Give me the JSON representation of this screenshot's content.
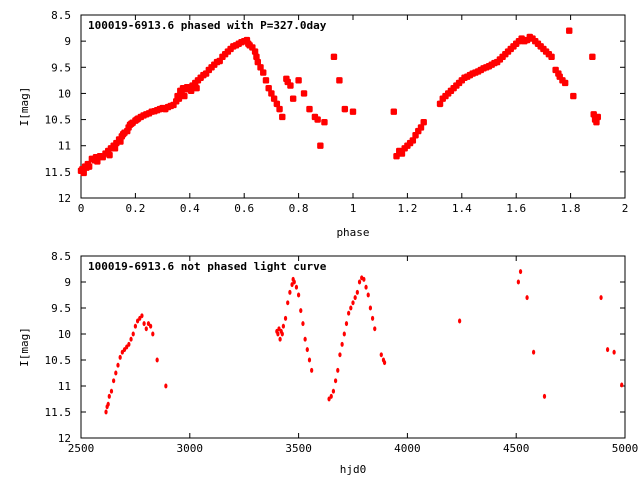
{
  "chart_data": [
    {
      "type": "scatter",
      "title": "100019-6913.6 phased with P=327.0day",
      "xlabel": "phase",
      "ylabel": "I[mag]",
      "xlim": [
        0,
        2
      ],
      "ylim": [
        12,
        8.5
      ],
      "y_inverted": true,
      "xticks": [
        0,
        0.2,
        0.4,
        0.6,
        0.8,
        1,
        1.2,
        1.4,
        1.6,
        1.8,
        2
      ],
      "xtick_labels": [
        "0",
        "0.2",
        "0.4",
        "0.6",
        "0.8",
        "1",
        "1.2",
        "1.4",
        "1.6",
        "1.8",
        "2"
      ],
      "yticks": [
        8.5,
        9,
        9.5,
        10,
        10.5,
        11,
        11.5,
        12
      ],
      "ytick_labels": [
        "8.5",
        "9",
        "9.5",
        "10",
        "10.5",
        "11",
        "11.5",
        "12"
      ],
      "color": "#ff0000",
      "marker": "filled-circle",
      "series": [
        {
          "values": [
            [
              0.0,
              11.48
            ],
            [
              0.005,
              11.45
            ],
            [
              0.01,
              11.52
            ],
            [
              0.015,
              11.4
            ],
            [
              0.02,
              11.42
            ],
            [
              0.025,
              11.35
            ],
            [
              0.03,
              11.4
            ],
            [
              0.04,
              11.25
            ],
            [
              0.05,
              11.28
            ],
            [
              0.055,
              11.22
            ],
            [
              0.06,
              11.3
            ],
            [
              0.07,
              11.2
            ],
            [
              0.08,
              11.22
            ],
            [
              0.09,
              11.15
            ],
            [
              0.1,
              11.1
            ],
            [
              0.105,
              11.18
            ],
            [
              0.11,
              11.05
            ],
            [
              0.12,
              11.0
            ],
            [
              0.125,
              11.05
            ],
            [
              0.13,
              10.95
            ],
            [
              0.14,
              10.88
            ],
            [
              0.145,
              10.92
            ],
            [
              0.15,
              10.82
            ],
            [
              0.155,
              10.78
            ],
            [
              0.16,
              10.75
            ],
            [
              0.17,
              10.72
            ],
            [
              0.175,
              10.65
            ],
            [
              0.18,
              10.6
            ],
            [
              0.185,
              10.58
            ],
            [
              0.19,
              10.56
            ],
            [
              0.2,
              10.52
            ],
            [
              0.205,
              10.5
            ],
            [
              0.21,
              10.48
            ],
            [
              0.22,
              10.45
            ],
            [
              0.23,
              10.42
            ],
            [
              0.24,
              10.4
            ],
            [
              0.25,
              10.38
            ],
            [
              0.26,
              10.35
            ],
            [
              0.27,
              10.34
            ],
            [
              0.28,
              10.32
            ],
            [
              0.29,
              10.3
            ],
            [
              0.3,
              10.28
            ],
            [
              0.31,
              10.3
            ],
            [
              0.32,
              10.26
            ],
            [
              0.33,
              10.24
            ],
            [
              0.34,
              10.22
            ],
            [
              0.35,
              10.15
            ],
            [
              0.355,
              10.05
            ],
            [
              0.36,
              10.1
            ],
            [
              0.365,
              9.95
            ],
            [
              0.37,
              10.0
            ],
            [
              0.375,
              9.9
            ],
            [
              0.38,
              10.05
            ],
            [
              0.385,
              9.92
            ],
            [
              0.39,
              9.88
            ],
            [
              0.4,
              9.9
            ],
            [
              0.405,
              9.95
            ],
            [
              0.41,
              9.85
            ],
            [
              0.42,
              9.8
            ],
            [
              0.425,
              9.9
            ],
            [
              0.43,
              9.75
            ],
            [
              0.44,
              9.7
            ],
            [
              0.45,
              9.65
            ],
            [
              0.46,
              9.62
            ],
            [
              0.47,
              9.55
            ],
            [
              0.48,
              9.5
            ],
            [
              0.49,
              9.45
            ],
            [
              0.5,
              9.4
            ],
            [
              0.51,
              9.38
            ],
            [
              0.52,
              9.3
            ],
            [
              0.53,
              9.25
            ],
            [
              0.54,
              9.2
            ],
            [
              0.55,
              9.15
            ],
            [
              0.56,
              9.1
            ],
            [
              0.57,
              9.08
            ],
            [
              0.58,
              9.05
            ],
            [
              0.59,
              9.02
            ],
            [
              0.6,
              9.0
            ],
            [
              0.61,
              8.98
            ],
            [
              0.615,
              9.05
            ],
            [
              0.62,
              9.08
            ],
            [
              0.63,
              9.12
            ],
            [
              0.64,
              9.2
            ],
            [
              0.645,
              9.3
            ],
            [
              0.65,
              9.4
            ],
            [
              0.66,
              9.5
            ],
            [
              0.67,
              9.6
            ],
            [
              0.68,
              9.75
            ],
            [
              0.69,
              9.9
            ],
            [
              0.7,
              10.0
            ],
            [
              0.71,
              10.1
            ],
            [
              0.72,
              10.2
            ],
            [
              0.73,
              10.3
            ],
            [
              0.74,
              10.45
            ],
            [
              0.755,
              9.72
            ],
            [
              0.76,
              9.78
            ],
            [
              0.77,
              9.85
            ],
            [
              0.78,
              10.1
            ],
            [
              0.8,
              9.75
            ],
            [
              0.82,
              10.0
            ],
            [
              0.84,
              10.3
            ],
            [
              0.86,
              10.45
            ],
            [
              0.87,
              10.5
            ],
            [
              0.88,
              11.0
            ],
            [
              0.895,
              10.55
            ],
            [
              0.93,
              9.3
            ],
            [
              0.95,
              9.75
            ],
            [
              0.97,
              10.3
            ],
            [
              1.0,
              10.35
            ],
            [
              1.15,
              10.35
            ],
            [
              1.16,
              11.2
            ],
            [
              1.17,
              11.1
            ],
            [
              1.18,
              11.15
            ],
            [
              1.19,
              11.05
            ],
            [
              1.2,
              11.0
            ],
            [
              1.21,
              10.95
            ],
            [
              1.22,
              10.9
            ],
            [
              1.23,
              10.8
            ],
            [
              1.24,
              10.72
            ],
            [
              1.25,
              10.65
            ],
            [
              1.26,
              10.55
            ],
            [
              1.32,
              10.2
            ],
            [
              1.33,
              10.1
            ],
            [
              1.34,
              10.05
            ],
            [
              1.35,
              10.0
            ],
            [
              1.36,
              9.95
            ],
            [
              1.37,
              9.9
            ],
            [
              1.38,
              9.85
            ],
            [
              1.39,
              9.8
            ],
            [
              1.4,
              9.75
            ],
            [
              1.41,
              9.7
            ],
            [
              1.42,
              9.68
            ],
            [
              1.43,
              9.65
            ],
            [
              1.44,
              9.62
            ],
            [
              1.45,
              9.6
            ],
            [
              1.46,
              9.58
            ],
            [
              1.47,
              9.55
            ],
            [
              1.48,
              9.52
            ],
            [
              1.49,
              9.5
            ],
            [
              1.5,
              9.48
            ],
            [
              1.51,
              9.45
            ],
            [
              1.52,
              9.42
            ],
            [
              1.53,
              9.4
            ],
            [
              1.54,
              9.35
            ],
            [
              1.55,
              9.3
            ],
            [
              1.56,
              9.25
            ],
            [
              1.57,
              9.2
            ],
            [
              1.58,
              9.15
            ],
            [
              1.59,
              9.1
            ],
            [
              1.6,
              9.05
            ],
            [
              1.61,
              9.0
            ],
            [
              1.62,
              8.95
            ],
            [
              1.63,
              9.0
            ],
            [
              1.64,
              8.98
            ],
            [
              1.65,
              8.92
            ],
            [
              1.66,
              8.95
            ],
            [
              1.67,
              9.0
            ],
            [
              1.68,
              9.05
            ],
            [
              1.69,
              9.1
            ],
            [
              1.7,
              9.15
            ],
            [
              1.71,
              9.2
            ],
            [
              1.72,
              9.25
            ],
            [
              1.73,
              9.3
            ],
            [
              1.745,
              9.55
            ],
            [
              1.755,
              9.62
            ],
            [
              1.76,
              9.68
            ],
            [
              1.77,
              9.75
            ],
            [
              1.78,
              9.8
            ],
            [
              1.795,
              8.8
            ],
            [
              1.81,
              10.05
            ],
            [
              1.88,
              9.3
            ],
            [
              1.885,
              10.4
            ],
            [
              1.89,
              10.5
            ],
            [
              1.895,
              10.55
            ],
            [
              1.9,
              10.45
            ]
          ]
        }
      ]
    },
    {
      "type": "scatter",
      "title": "100019-6913.6 not phased light curve",
      "xlabel": "hjd0",
      "ylabel": "I[mag]",
      "xlim": [
        2500,
        5000
      ],
      "ylim": [
        12,
        8.5
      ],
      "y_inverted": true,
      "xticks": [
        2500,
        3000,
        3500,
        4000,
        4500,
        5000
      ],
      "xtick_labels": [
        "2500",
        "3000",
        "3500",
        "4000",
        "4500",
        "5000"
      ],
      "yticks": [
        8.5,
        9,
        9.5,
        10,
        10.5,
        11,
        11.5,
        12
      ],
      "ytick_labels": [
        "8.5",
        "9",
        "9.5",
        "10",
        "10.5",
        "11",
        "11.5",
        "12"
      ],
      "color": "#ff0000",
      "marker": "filled-circle",
      "series": [
        {
          "values": [
            [
              2615,
              11.5
            ],
            [
              2620,
              11.4
            ],
            [
              2625,
              11.35
            ],
            [
              2630,
              11.2
            ],
            [
              2640,
              11.1
            ],
            [
              2650,
              10.9
            ],
            [
              2660,
              10.75
            ],
            [
              2670,
              10.6
            ],
            [
              2680,
              10.45
            ],
            [
              2690,
              10.35
            ],
            [
              2700,
              10.3
            ],
            [
              2710,
              10.25
            ],
            [
              2720,
              10.2
            ],
            [
              2730,
              10.1
            ],
            [
              2740,
              10.0
            ],
            [
              2750,
              9.85
            ],
            [
              2760,
              9.75
            ],
            [
              2770,
              9.7
            ],
            [
              2780,
              9.65
            ],
            [
              2790,
              9.8
            ],
            [
              2800,
              9.9
            ],
            [
              2810,
              9.8
            ],
            [
              2820,
              9.85
            ],
            [
              2830,
              10.0
            ],
            [
              2850,
              10.5
            ],
            [
              2890,
              11.0
            ],
            [
              3400,
              9.95
            ],
            [
              3405,
              10.0
            ],
            [
              3410,
              9.9
            ],
            [
              3415,
              10.1
            ],
            [
              3420,
              9.95
            ],
            [
              3425,
              10.0
            ],
            [
              3430,
              9.85
            ],
            [
              3440,
              9.7
            ],
            [
              3450,
              9.4
            ],
            [
              3460,
              9.2
            ],
            [
              3470,
              9.05
            ],
            [
              3475,
              8.95
            ],
            [
              3480,
              9.0
            ],
            [
              3490,
              9.1
            ],
            [
              3500,
              9.25
            ],
            [
              3510,
              9.55
            ],
            [
              3520,
              9.8
            ],
            [
              3530,
              10.1
            ],
            [
              3540,
              10.3
            ],
            [
              3550,
              10.5
            ],
            [
              3560,
              10.7
            ],
            [
              3640,
              11.25
            ],
            [
              3650,
              11.2
            ],
            [
              3660,
              11.1
            ],
            [
              3670,
              10.9
            ],
            [
              3680,
              10.7
            ],
            [
              3690,
              10.4
            ],
            [
              3700,
              10.2
            ],
            [
              3710,
              10.0
            ],
            [
              3720,
              9.8
            ],
            [
              3730,
              9.6
            ],
            [
              3740,
              9.5
            ],
            [
              3750,
              9.4
            ],
            [
              3760,
              9.3
            ],
            [
              3770,
              9.2
            ],
            [
              3780,
              9.0
            ],
            [
              3790,
              8.92
            ],
            [
              3800,
              8.95
            ],
            [
              3810,
              9.1
            ],
            [
              3820,
              9.25
            ],
            [
              3830,
              9.5
            ],
            [
              3840,
              9.7
            ],
            [
              3850,
              9.9
            ],
            [
              3880,
              10.4
            ],
            [
              3890,
              10.5
            ],
            [
              3895,
              10.55
            ],
            [
              4240,
              9.75
            ],
            [
              4510,
              9.0
            ],
            [
              4520,
              8.8
            ],
            [
              4550,
              9.3
            ],
            [
              4580,
              10.35
            ],
            [
              4630,
              11.2
            ],
            [
              4890,
              9.3
            ],
            [
              4920,
              10.3
            ],
            [
              4950,
              10.35
            ],
            [
              4985,
              10.98
            ]
          ]
        }
      ]
    }
  ]
}
